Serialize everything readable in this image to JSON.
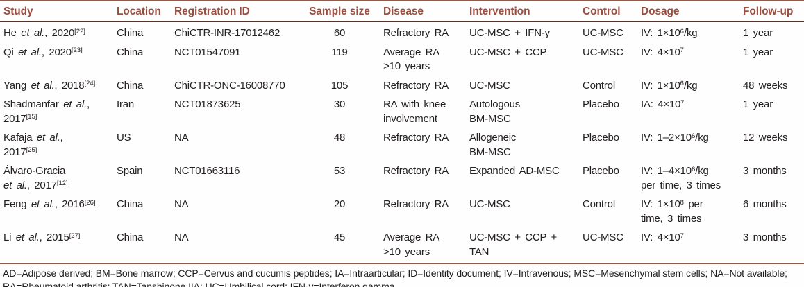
{
  "table": {
    "columns": [
      {
        "id": "study",
        "label": "Study",
        "align": "left"
      },
      {
        "id": "location",
        "label": "Location",
        "align": "left"
      },
      {
        "id": "registration_id",
        "label": "Registration ID",
        "align": "left"
      },
      {
        "id": "sample_size",
        "label": "Sample size",
        "align": "center"
      },
      {
        "id": "disease",
        "label": "Disease",
        "align": "left"
      },
      {
        "id": "intervention",
        "label": "Intervention",
        "align": "left"
      },
      {
        "id": "control",
        "label": "Control",
        "align": "left"
      },
      {
        "id": "dosage",
        "label": "Dosage",
        "align": "left"
      },
      {
        "id": "follow_up",
        "label": "Follow-up",
        "align": "left"
      }
    ],
    "rows": [
      {
        "study": "He *et al.*, 2020^[22]^",
        "location": "China",
        "registration_id": "ChiCTR-INR-17012462",
        "sample_size": "60",
        "disease": "Refractory RA",
        "intervention": "UC-MSC + IFN-γ",
        "control": "UC-MSC",
        "dosage": "IV: 1×10^6^/kg",
        "follow_up": "1 year"
      },
      {
        "study": "Qi *et al.*, 2020^[23]^",
        "location": "China",
        "registration_id": "NCT01547091",
        "sample_size": "119",
        "disease": [
          "Average RA",
          ">10 years"
        ],
        "intervention": "UC-MSC + CCP",
        "control": "UC-MSC",
        "dosage": "IV: 4×10^7^",
        "follow_up": "1 year"
      },
      {
        "study": "Yang *et al.*, 2018^[24]^",
        "location": "China",
        "registration_id": "ChiCTR-ONC-16008770",
        "sample_size": "105",
        "disease": "Refractory RA",
        "intervention": "UC-MSC",
        "control": "Control",
        "dosage": "IV: 1×10^6^/kg",
        "follow_up": "48 weeks"
      },
      {
        "study": [
          "Shadmanfar *et al.*,",
          "2017^[15]^"
        ],
        "location": "Iran",
        "registration_id": "NCT01873625",
        "sample_size": "30",
        "disease": [
          "RA with knee",
          "involvement"
        ],
        "intervention": [
          "Autologous",
          "BM-MSC"
        ],
        "control": "Placebo",
        "dosage": "IA: 4×10^7^",
        "follow_up": "1 year"
      },
      {
        "study": [
          "Kafaja *et al.*,",
          "2017^[25]^"
        ],
        "location": "US",
        "registration_id": "NA",
        "sample_size": "48",
        "disease": "Refractory RA",
        "intervention": [
          "Allogeneic",
          "BM-MSC"
        ],
        "control": "Placebo",
        "dosage": "IV: 1–2×10^6^/kg",
        "follow_up": "12 weeks"
      },
      {
        "study": [
          "Álvaro-Gracia",
          "*et al.*, 2017^[12]^"
        ],
        "location": "Spain",
        "registration_id": "NCT01663116",
        "sample_size": "53",
        "disease": "Refractory RA",
        "intervention": "Expanded AD-MSC",
        "control": "Placebo",
        "dosage": [
          "IV: 1–4×10^6^/kg",
          "per time, 3 times"
        ],
        "follow_up": "3 months"
      },
      {
        "study": "Feng *et al.*, 2016^[26]^",
        "location": "China",
        "registration_id": "NA",
        "sample_size": "20",
        "disease": "Refractory RA",
        "intervention": "UC-MSC",
        "control": "Control",
        "dosage": [
          "IV: 1×10^8^ per",
          "time, 3 times"
        ],
        "follow_up": "6 months"
      },
      {
        "study": "Li *et al.*, 2015^[27]^",
        "location": "China",
        "registration_id": "NA",
        "sample_size": "45",
        "disease": [
          "Average RA",
          ">10 years"
        ],
        "intervention": [
          "UC-MSC + CCP +",
          "TAN"
        ],
        "control": "UC-MSC",
        "dosage": "IV: 4×10^7^",
        "follow_up": "3 months"
      }
    ]
  },
  "footnote": "AD=Adipose derived; BM=Bone marrow; CCP=Cervus and cucumis peptides; IA=Intraarticular; ID=Identity document; IV=Intravenous; MSC=Mesenchymal stem cells; NA=Not available; RA=Rheumatoid arthritis; TAN=Tanshinone IIA; UC=Umbilical cord; IFN-γ=Interferon gamma",
  "colors": {
    "header_text": "#9b4e3f",
    "body_text": "#242021",
    "rule_light": "#8f5a49",
    "rule_dark": "#513329",
    "background": "#fefefe"
  }
}
